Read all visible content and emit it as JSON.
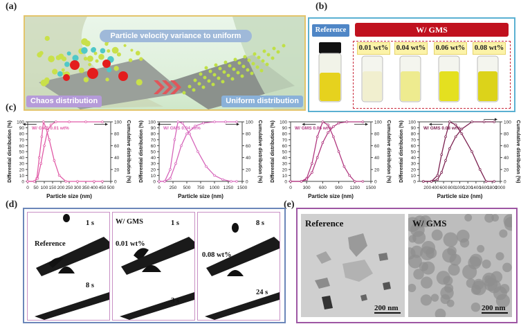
{
  "labels": {
    "a": "(a)",
    "b": "(b)",
    "c": "(c)",
    "d": "(d)",
    "e": "(e)"
  },
  "panel_a": {
    "title": "Particle velocity variance to uniform",
    "left_label": "Chaos distribution",
    "right_label": "Uniform distribution"
  },
  "panel_b": {
    "reference": "Reference",
    "group": "W/ GMS",
    "concentrations": [
      "0.01 wt%",
      "0.04 wt%",
      "0.06 wt%",
      "0.08 wt%"
    ]
  },
  "panel_d": {
    "reference": {
      "label": "Reference",
      "t1": "1 s",
      "t2": "8 s"
    },
    "gms_title": "W/  GMS",
    "c1": {
      "label": "0.01 wt%",
      "t1": "1 s",
      "t2": "3 s"
    },
    "c2": {
      "label": "0.08 wt%",
      "t1": "8 s",
      "t2": "24 s"
    }
  },
  "panel_e": {
    "reference": "Reference",
    "gms": "W/  GMS",
    "scale1": "200 nm",
    "scale2": "200 nm"
  },
  "colors": {
    "c1": "#e05aa6",
    "c2": "#d665ba",
    "c3": "#b0377f",
    "c4": "#7a1f4f"
  },
  "chart_data": [
    {
      "type": "line",
      "title": "W/ GMS 0.01 wt%",
      "xlabel": "Particle size (nm)",
      "ylabel": "Differential distribution (%)",
      "y2label": "Cumulative distribution (%)",
      "xlim": [
        0,
        500
      ],
      "xticks": [
        0,
        50,
        100,
        150,
        200,
        250,
        300,
        350,
        400,
        450,
        500
      ],
      "ylim": [
        0,
        100
      ],
      "yticks": [
        0,
        10,
        20,
        30,
        40,
        50,
        60,
        70,
        80,
        90,
        100
      ],
      "y2ticks": [
        0,
        20,
        40,
        60,
        80,
        100
      ],
      "series": [
        {
          "values": [
            [
              0,
              0
            ],
            [
              40,
              0
            ],
            [
              55,
              5
            ],
            [
              70,
              40
            ],
            [
              85,
              75
            ],
            [
              95,
              100
            ],
            [
              110,
              90
            ],
            [
              130,
              70
            ],
            [
              160,
              35
            ],
            [
              190,
              10
            ],
            [
              230,
              0
            ],
            [
              300,
              0
            ],
            [
              400,
              0
            ],
            [
              450,
              0
            ]
          ]
        },
        {
          "values": [
            [
              0,
              0
            ],
            [
              40,
              0
            ],
            [
              60,
              5
            ],
            [
              80,
              30
            ],
            [
              100,
              60
            ],
            [
              120,
              85
            ],
            [
              140,
              95
            ],
            [
              170,
              100
            ],
            [
              250,
              100
            ],
            [
              350,
              100
            ],
            [
              450,
              100
            ]
          ]
        }
      ]
    },
    {
      "type": "line",
      "title": "W/ GMS 0.04 wt%",
      "xlabel": "Particle size (nm)",
      "ylabel": "Differential distribution (%)",
      "y2label": "Cumulative distribution (%)",
      "xlim": [
        0,
        1500
      ],
      "xticks": [
        0,
        250,
        500,
        750,
        1000,
        1250,
        1500
      ],
      "ylim": [
        0,
        100
      ],
      "yticks": [
        0,
        10,
        20,
        30,
        40,
        50,
        60,
        70,
        80,
        90,
        100
      ],
      "y2ticks": [
        0,
        20,
        40,
        60,
        80,
        100
      ],
      "series": [
        {
          "values": [
            [
              0,
              0
            ],
            [
              100,
              0
            ],
            [
              200,
              20
            ],
            [
              280,
              70
            ],
            [
              340,
              100
            ],
            [
              420,
              98
            ],
            [
              550,
              80
            ],
            [
              700,
              50
            ],
            [
              850,
              25
            ],
            [
              1000,
              10
            ],
            [
              1150,
              3
            ],
            [
              1300,
              0
            ],
            [
              1400,
              0
            ]
          ]
        },
        {
          "values": [
            [
              0,
              0
            ],
            [
              100,
              0
            ],
            [
              200,
              5
            ],
            [
              300,
              30
            ],
            [
              400,
              60
            ],
            [
              500,
              80
            ],
            [
              650,
              93
            ],
            [
              800,
              98
            ],
            [
              1000,
              100
            ],
            [
              1200,
              100
            ],
            [
              1400,
              100
            ]
          ]
        }
      ]
    },
    {
      "type": "line",
      "title": "W/ GMS 0.06 wt%",
      "xlabel": "Particle size (nm)",
      "ylabel": "Differential distribution (%)",
      "y2label": "Cumulative distribution (%)",
      "xlim": [
        0,
        1500
      ],
      "xticks": [
        0,
        300,
        600,
        900,
        1200,
        1500
      ],
      "ylim": [
        0,
        100
      ],
      "yticks": [
        0,
        10,
        20,
        30,
        40,
        50,
        60,
        70,
        80,
        90,
        100
      ],
      "y2ticks": [
        0,
        20,
        40,
        60,
        80,
        100
      ],
      "series": [
        {
          "values": [
            [
              0,
              0
            ],
            [
              200,
              0
            ],
            [
              300,
              5
            ],
            [
              400,
              30
            ],
            [
              500,
              75
            ],
            [
              600,
              100
            ],
            [
              700,
              95
            ],
            [
              800,
              75
            ],
            [
              900,
              50
            ],
            [
              1000,
              25
            ],
            [
              1100,
              10
            ],
            [
              1200,
              0
            ],
            [
              1350,
              0
            ]
          ]
        },
        {
          "values": [
            [
              0,
              0
            ],
            [
              200,
              0
            ],
            [
              300,
              3
            ],
            [
              400,
              15
            ],
            [
              500,
              40
            ],
            [
              600,
              65
            ],
            [
              700,
              82
            ],
            [
              800,
              92
            ],
            [
              900,
              98
            ],
            [
              1050,
              100
            ],
            [
              1350,
              100
            ]
          ]
        }
      ]
    },
    {
      "type": "line",
      "title": "W/ GMS 0.08 wt%",
      "xlabel": "Particle size (nm)",
      "ylabel": "Differential distribution (%)",
      "y2label": "Cumulative distribution (%)",
      "xlim": [
        0,
        2000
      ],
      "xticks": [
        200,
        400,
        600,
        800,
        1000,
        1200,
        1400,
        1600,
        1800,
        2000
      ],
      "ylim": [
        0,
        100
      ],
      "yticks": [
        0,
        10,
        20,
        30,
        40,
        50,
        60,
        70,
        80,
        90,
        100
      ],
      "y2ticks": [
        0,
        20,
        40,
        60,
        80,
        100
      ],
      "series": [
        {
          "values": [
            [
              100,
              0
            ],
            [
              300,
              0
            ],
            [
              450,
              10
            ],
            [
              550,
              45
            ],
            [
              650,
              75
            ],
            [
              750,
              100
            ],
            [
              900,
              95
            ],
            [
              1050,
              80
            ],
            [
              1300,
              50
            ],
            [
              1500,
              20
            ],
            [
              1650,
              0
            ],
            [
              1850,
              0
            ]
          ]
        },
        {
          "values": [
            [
              100,
              0
            ],
            [
              300,
              0
            ],
            [
              450,
              3
            ],
            [
              550,
              15
            ],
            [
              650,
              35
            ],
            [
              750,
              55
            ],
            [
              900,
              75
            ],
            [
              1050,
              88
            ],
            [
              1300,
              100
            ],
            [
              1600,
              100
            ],
            [
              1850,
              100
            ]
          ]
        }
      ]
    }
  ]
}
